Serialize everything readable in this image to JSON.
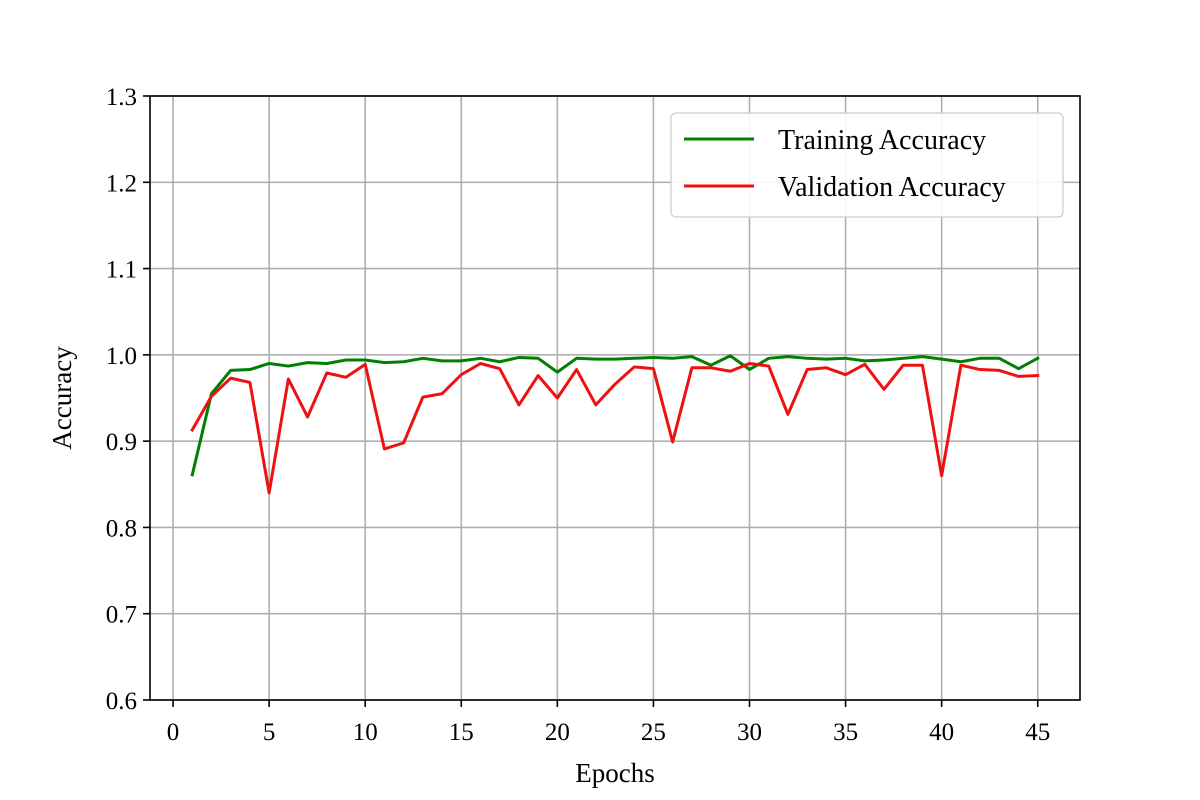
{
  "chart_data": {
    "type": "line",
    "title": "",
    "xlabel": "Epochs",
    "ylabel": "Accuracy",
    "xlim": [
      -1.2,
      47.2
    ],
    "ylim": [
      0.6,
      1.3
    ],
    "xticks": [
      0,
      5,
      10,
      15,
      20,
      25,
      30,
      35,
      40,
      45
    ],
    "xtick_labels": [
      "0",
      "5",
      "10",
      "15",
      "20",
      "25",
      "30",
      "35",
      "40",
      "45"
    ],
    "yticks": [
      0.6,
      0.7,
      0.8,
      0.9,
      1.0,
      1.1,
      1.2,
      1.3
    ],
    "ytick_labels": [
      "0.6",
      "0.7",
      "0.8",
      "0.9",
      "1.0",
      "1.1",
      "1.2",
      "1.3"
    ],
    "grid": true,
    "legend_position": "top-right",
    "x": [
      1,
      2,
      3,
      4,
      5,
      6,
      7,
      8,
      9,
      10,
      11,
      12,
      13,
      14,
      15,
      16,
      17,
      18,
      19,
      20,
      21,
      22,
      23,
      24,
      25,
      26,
      27,
      28,
      29,
      30,
      31,
      32,
      33,
      34,
      35,
      36,
      37,
      38,
      39,
      40,
      41,
      42,
      43,
      44,
      45
    ],
    "series": [
      {
        "name": "Training Accuracy",
        "color": "#008000",
        "values": [
          0.861,
          0.955,
          0.982,
          0.983,
          0.99,
          0.987,
          0.991,
          0.99,
          0.994,
          0.994,
          0.991,
          0.992,
          0.996,
          0.993,
          0.993,
          0.996,
          0.992,
          0.997,
          0.996,
          0.98,
          0.996,
          0.995,
          0.995,
          0.996,
          0.997,
          0.996,
          0.998,
          0.988,
          0.999,
          0.983,
          0.996,
          0.998,
          0.996,
          0.995,
          0.996,
          0.993,
          0.994,
          0.996,
          0.998,
          0.995,
          0.992,
          0.996,
          0.996,
          0.984,
          0.996
        ]
      },
      {
        "name": "Validation Accuracy",
        "color": "#ee1111",
        "values": [
          0.913,
          0.952,
          0.973,
          0.968,
          0.84,
          0.972,
          0.928,
          0.979,
          0.974,
          0.989,
          0.891,
          0.898,
          0.951,
          0.955,
          0.977,
          0.99,
          0.984,
          0.942,
          0.976,
          0.95,
          0.983,
          0.942,
          0.966,
          0.986,
          0.984,
          0.899,
          0.985,
          0.985,
          0.981,
          0.99,
          0.987,
          0.931,
          0.983,
          0.985,
          0.977,
          0.989,
          0.96,
          0.988,
          0.988,
          0.86,
          0.988,
          0.983,
          0.982,
          0.975,
          0.976
        ]
      }
    ]
  }
}
